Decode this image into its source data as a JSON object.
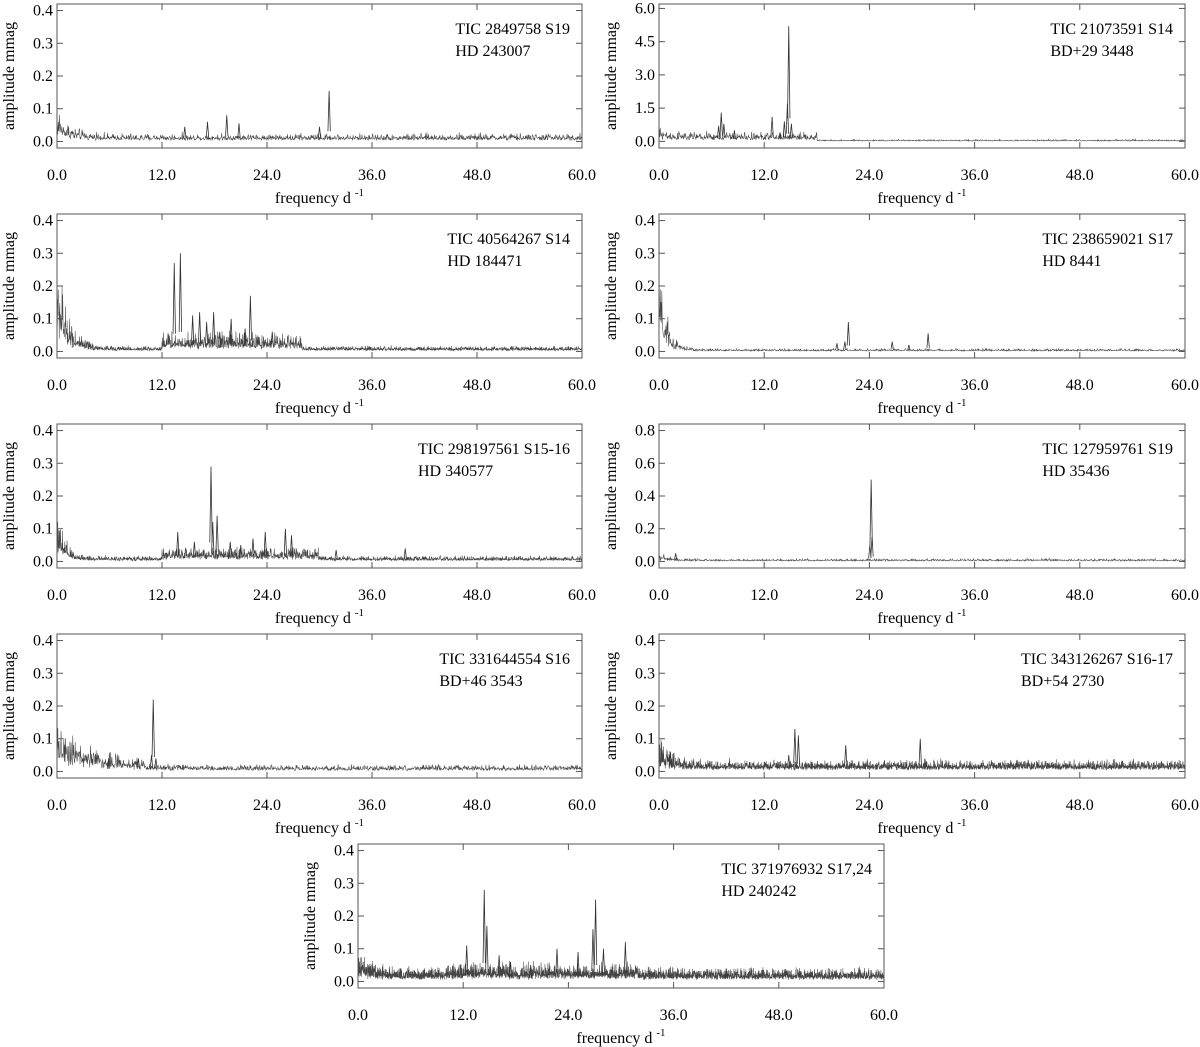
{
  "figure": {
    "description_x_label": "frequency d",
    "x_label_superscript": "-1",
    "y_label": "amplitude mmag"
  },
  "chart_data": [
    {
      "type": "line",
      "annotation": [
        "TIC 2849758 S19",
        "HD 243007"
      ],
      "xlabel": "frequency d-1",
      "ylabel": "amplitude mmag",
      "xlim": [
        0,
        60
      ],
      "ylim": [
        -0.02,
        0.42
      ],
      "xticks": [
        "0.0",
        "12.0",
        "24.0",
        "36.0",
        "48.0",
        "60.0"
      ],
      "yticks": [
        "0.0",
        "0.1",
        "0.2",
        "0.3",
        "0.4"
      ],
      "noise": {
        "low_freq_level": 0.06,
        "low_freq_width": 1.5,
        "base": 0.018
      },
      "peaks": [
        [
          31.1,
          0.155
        ],
        [
          19.4,
          0.08
        ],
        [
          17.2,
          0.06
        ],
        [
          20.8,
          0.055
        ],
        [
          30.0,
          0.045
        ],
        [
          14.6,
          0.045
        ]
      ],
      "density": 1
    },
    {
      "type": "line",
      "annotation": [
        "TIC 21073591 S14",
        "BD+29 3448"
      ],
      "xlabel": "frequency d-1",
      "ylabel": "amplitude mmag",
      "xlim": [
        0,
        60
      ],
      "ylim": [
        -0.3,
        6.2
      ],
      "xticks": [
        "0.0",
        "12.0",
        "24.0",
        "36.0",
        "48.0",
        "60.0"
      ],
      "yticks": [
        "0.0",
        "1.5",
        "3.0",
        "4.5",
        "6.0"
      ],
      "noise": {
        "low_freq_level": 0.25,
        "low_freq_width": 1.0,
        "base": 0.06,
        "hump": [
          0,
          18,
          0.25
        ]
      },
      "peaks": [
        [
          14.8,
          5.2
        ],
        [
          14.65,
          1.7
        ],
        [
          7.1,
          1.3
        ],
        [
          12.9,
          1.1
        ],
        [
          7.4,
          0.8
        ],
        [
          6.8,
          0.7
        ],
        [
          14.3,
          0.9
        ],
        [
          15.1,
          0.8
        ],
        [
          8.6,
          0.5
        ],
        [
          13.8,
          0.4
        ]
      ],
      "density": 1
    },
    {
      "type": "line",
      "annotation": [
        "TIC 40564267 S14",
        "HD 184471"
      ],
      "xlabel": "frequency d-1",
      "ylabel": "amplitude mmag",
      "xlim": [
        0,
        60
      ],
      "ylim": [
        -0.02,
        0.42
      ],
      "xticks": [
        "0.0",
        "12.0",
        "24.0",
        "36.0",
        "48.0",
        "60.0"
      ],
      "yticks": [
        "0.0",
        "0.1",
        "0.2",
        "0.3",
        "0.4"
      ],
      "noise": {
        "low_freq_level": 0.22,
        "low_freq_width": 1.2,
        "base": 0.012,
        "hump": [
          12,
          28,
          0.03
        ]
      },
      "peaks": [
        [
          14.1,
          0.3
        ],
        [
          13.4,
          0.27
        ],
        [
          22.1,
          0.17
        ],
        [
          17.9,
          0.12
        ],
        [
          16.3,
          0.12
        ],
        [
          15.5,
          0.11
        ],
        [
          19.9,
          0.1
        ],
        [
          17.1,
          0.09
        ],
        [
          21.5,
          0.07
        ],
        [
          24.6,
          0.06
        ],
        [
          18.6,
          0.06
        ]
      ],
      "density": 1.6
    },
    {
      "type": "line",
      "annotation": [
        "TIC 238659021 S17",
        "HD 8441"
      ],
      "xlabel": "frequency d-1",
      "ylabel": "amplitude mmag",
      "xlim": [
        0,
        60
      ],
      "ylim": [
        -0.02,
        0.42
      ],
      "xticks": [
        "0.0",
        "12.0",
        "24.0",
        "36.0",
        "48.0",
        "60.0"
      ],
      "yticks": [
        "0.0",
        "0.1",
        "0.2",
        "0.3",
        "0.4"
      ],
      "noise": {
        "low_freq_level": 0.2,
        "low_freq_width": 0.9,
        "base": 0.006
      },
      "peaks": [
        [
          21.6,
          0.09
        ],
        [
          30.7,
          0.055
        ],
        [
          21.2,
          0.03
        ],
        [
          26.6,
          0.03
        ],
        [
          20.3,
          0.025
        ],
        [
          28.5,
          0.02
        ]
      ],
      "density": 1
    },
    {
      "type": "line",
      "annotation": [
        "TIC 298197561 S15-16",
        "HD 340577"
      ],
      "xlabel": "frequency d-1",
      "ylabel": "amplitude mmag",
      "xlim": [
        0,
        60
      ],
      "ylim": [
        -0.02,
        0.42
      ],
      "xticks": [
        "0.0",
        "12.0",
        "24.0",
        "36.0",
        "48.0",
        "60.0"
      ],
      "yticks": [
        "0.0",
        "0.1",
        "0.2",
        "0.3",
        "0.4"
      ],
      "noise": {
        "low_freq_level": 0.1,
        "low_freq_width": 1.0,
        "base": 0.012,
        "hump": [
          12,
          30,
          0.02
        ]
      },
      "peaks": [
        [
          17.6,
          0.29
        ],
        [
          17.8,
          0.12
        ],
        [
          18.3,
          0.14
        ],
        [
          26.1,
          0.1
        ],
        [
          23.8,
          0.09
        ],
        [
          13.8,
          0.09
        ],
        [
          22.4,
          0.07
        ],
        [
          26.8,
          0.08
        ],
        [
          19.8,
          0.06
        ],
        [
          15.7,
          0.06
        ],
        [
          39.8,
          0.04
        ],
        [
          31.9,
          0.035
        ],
        [
          21.0,
          0.05
        ]
      ],
      "density": 1.6
    },
    {
      "type": "line",
      "annotation": [
        "TIC 127959761 S19",
        "HD 35436"
      ],
      "xlabel": "frequency d-1",
      "ylabel": "amplitude mmag",
      "xlim": [
        0,
        60
      ],
      "ylim": [
        -0.04,
        0.84
      ],
      "xticks": [
        "0.0",
        "12.0",
        "24.0",
        "36.0",
        "48.0",
        "60.0"
      ],
      "yticks": [
        "0.0",
        "0.2",
        "0.4",
        "0.6",
        "0.8"
      ],
      "noise": {
        "low_freq_level": 0.03,
        "low_freq_width": 1.0,
        "base": 0.012
      },
      "peaks": [
        [
          24.2,
          0.5
        ],
        [
          24.3,
          0.15
        ],
        [
          24.05,
          0.1
        ],
        [
          1.9,
          0.05
        ]
      ],
      "density": 1
    },
    {
      "type": "line",
      "annotation": [
        "TIC 331644554 S16",
        "BD+46 3543"
      ],
      "xlabel": "frequency d-1",
      "ylabel": "amplitude mmag",
      "xlim": [
        0,
        60
      ],
      "ylim": [
        -0.02,
        0.42
      ],
      "xticks": [
        "0.0",
        "12.0",
        "24.0",
        "36.0",
        "48.0",
        "60.0"
      ],
      "yticks": [
        "0.0",
        "0.1",
        "0.2",
        "0.3",
        "0.4"
      ],
      "noise": {
        "low_freq_level": 0.1,
        "low_freq_width": 3.0,
        "base": 0.015,
        "hump": [
          0,
          10,
          0.015
        ]
      },
      "peaks": [
        [
          11.0,
          0.22
        ],
        [
          10.8,
          0.05
        ],
        [
          11.3,
          0.04
        ],
        [
          9.3,
          0.04
        ],
        [
          5.9,
          0.04
        ]
      ],
      "density": 1
    },
    {
      "type": "line",
      "annotation": [
        "TIC 343126267 S16-17",
        "BD+54 2730"
      ],
      "xlabel": "frequency d-1",
      "ylabel": "amplitude mmag",
      "xlim": [
        0,
        60
      ],
      "ylim": [
        -0.02,
        0.42
      ],
      "xticks": [
        "0.0",
        "12.0",
        "24.0",
        "36.0",
        "48.0",
        "60.0"
      ],
      "yticks": [
        "0.0",
        "0.1",
        "0.2",
        "0.3",
        "0.4"
      ],
      "noise": {
        "low_freq_level": 0.05,
        "low_freq_width": 1.5,
        "base": 0.025
      },
      "peaks": [
        [
          15.5,
          0.13
        ],
        [
          15.9,
          0.11
        ],
        [
          29.8,
          0.1
        ],
        [
          21.3,
          0.08
        ],
        [
          1.3,
          0.06
        ],
        [
          14.8,
          0.05
        ]
      ],
      "density": 2.2
    },
    {
      "type": "line",
      "annotation": [
        "TIC 371976932 S17,24",
        "HD 240242"
      ],
      "xlabel": "frequency d-1",
      "ylabel": "amplitude mmag",
      "xlim": [
        0,
        60
      ],
      "ylim": [
        -0.02,
        0.42
      ],
      "xticks": [
        "0.0",
        "12.0",
        "24.0",
        "36.0",
        "48.0",
        "60.0"
      ],
      "yticks": [
        "0.0",
        "0.1",
        "0.2",
        "0.3",
        "0.4"
      ],
      "noise": {
        "low_freq_level": 0.04,
        "low_freq_width": 1.5,
        "base": 0.03,
        "hump": [
          10,
          32,
          0.01
        ]
      },
      "peaks": [
        [
          14.4,
          0.28
        ],
        [
          27.1,
          0.25
        ],
        [
          14.7,
          0.17
        ],
        [
          26.8,
          0.16
        ],
        [
          30.5,
          0.12
        ],
        [
          12.4,
          0.11
        ],
        [
          22.7,
          0.1
        ],
        [
          25.1,
          0.09
        ],
        [
          28.0,
          0.1
        ],
        [
          16.1,
          0.08
        ],
        [
          17.4,
          0.06
        ],
        [
          19.7,
          0.05
        ],
        [
          42.0,
          0.04
        ]
      ],
      "density": 2.5
    }
  ]
}
